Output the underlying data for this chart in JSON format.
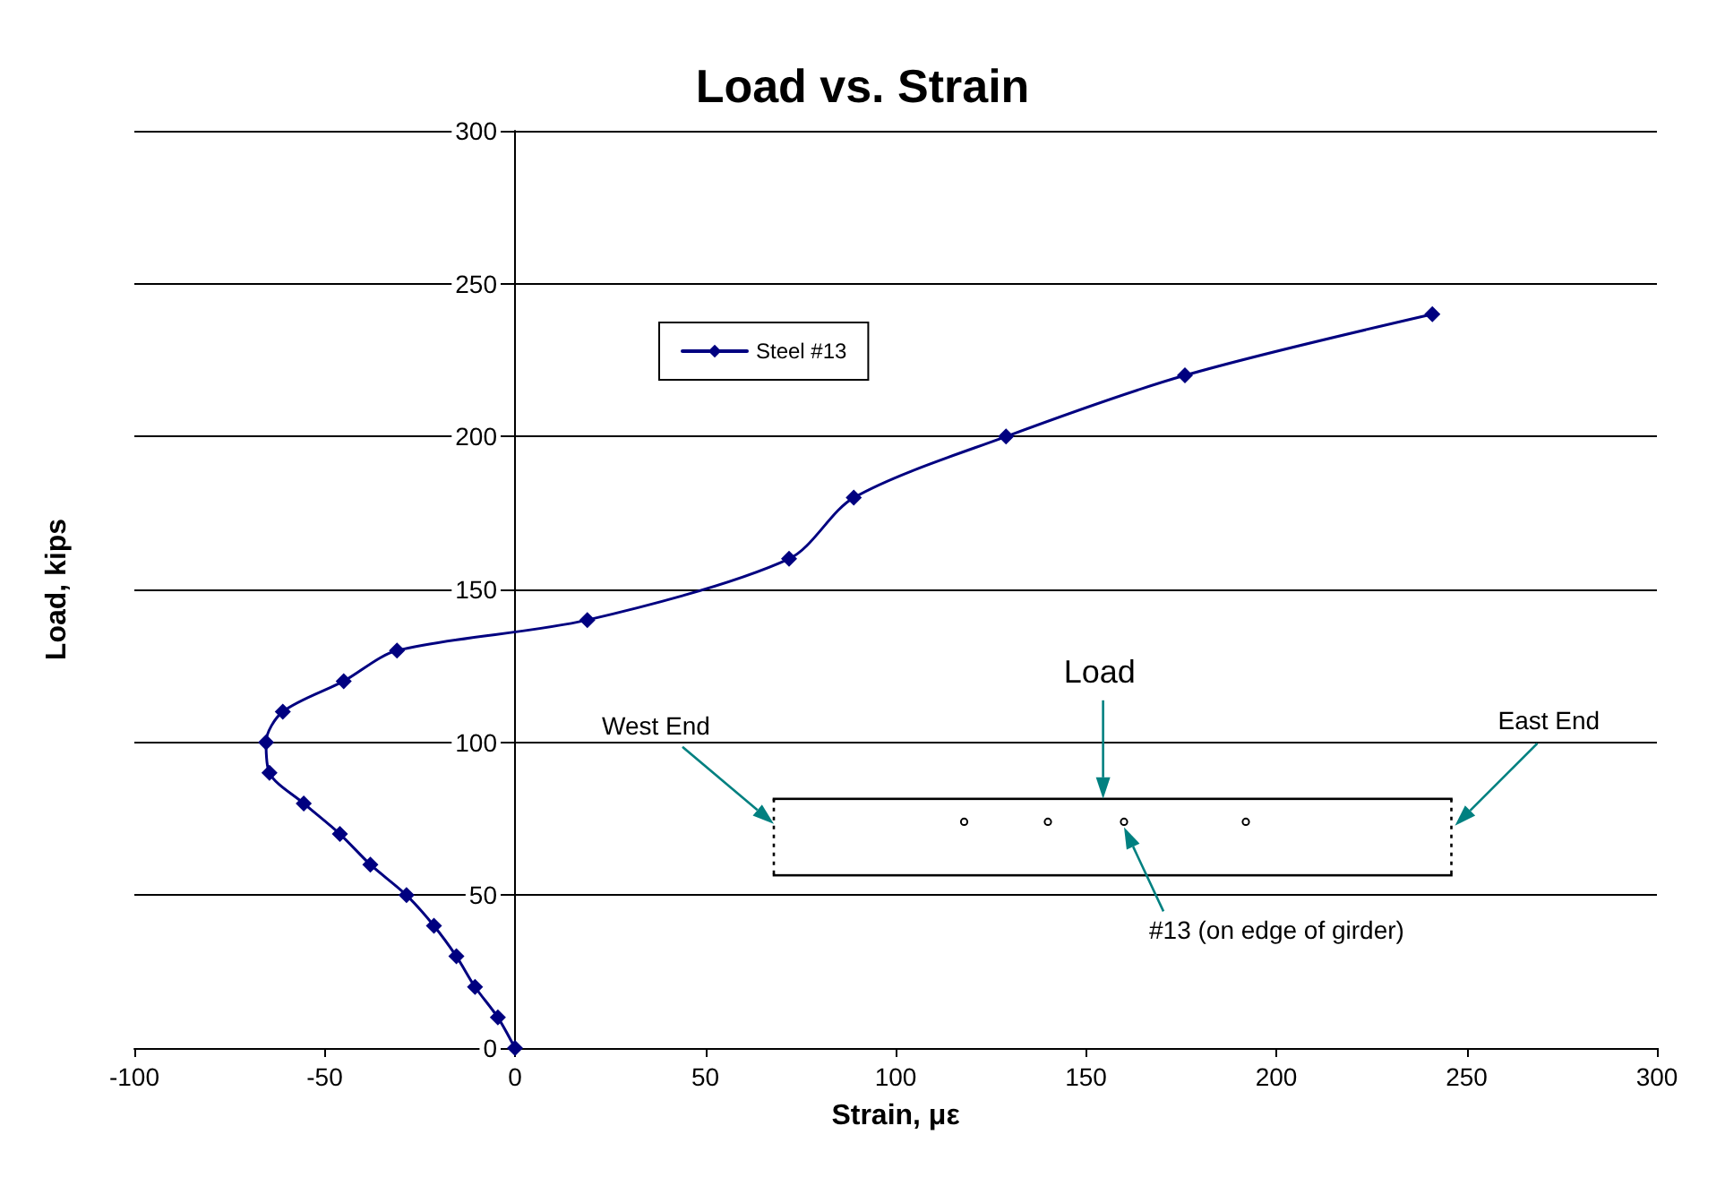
{
  "chart_data": {
    "type": "line",
    "title": "Load vs. Strain",
    "xlabel": "Strain, με",
    "ylabel": "Load, kips",
    "series": [
      {
        "name": "Steel #13",
        "color": "#000080",
        "x": [
          0,
          -4.5,
          -10.5,
          -15.4,
          -21.3,
          -28.5,
          -38,
          -46,
          -55.5,
          -64.5,
          -65.4,
          -61,
          -45,
          -31,
          19,
          72,
          89,
          129,
          176,
          241
        ],
        "values": [
          0,
          10,
          20,
          30,
          40,
          50,
          60,
          70,
          80,
          90,
          100,
          110,
          120,
          130,
          140,
          160,
          180,
          200,
          220,
          240
        ]
      }
    ],
    "xlim": [
      -100,
      300
    ],
    "xticks": [
      -100,
      -50,
      0,
      50,
      100,
      150,
      200,
      250,
      300
    ],
    "ylim": [
      0,
      300
    ],
    "yticks": [
      0,
      50,
      100,
      150,
      200,
      250,
      300
    ],
    "grid": "y",
    "legend": "top left",
    "marker": "diamond",
    "line_style": "solid",
    "annotations": [
      "Load",
      "West End",
      "East End",
      "#13 (on edge of girder)"
    ]
  }
}
